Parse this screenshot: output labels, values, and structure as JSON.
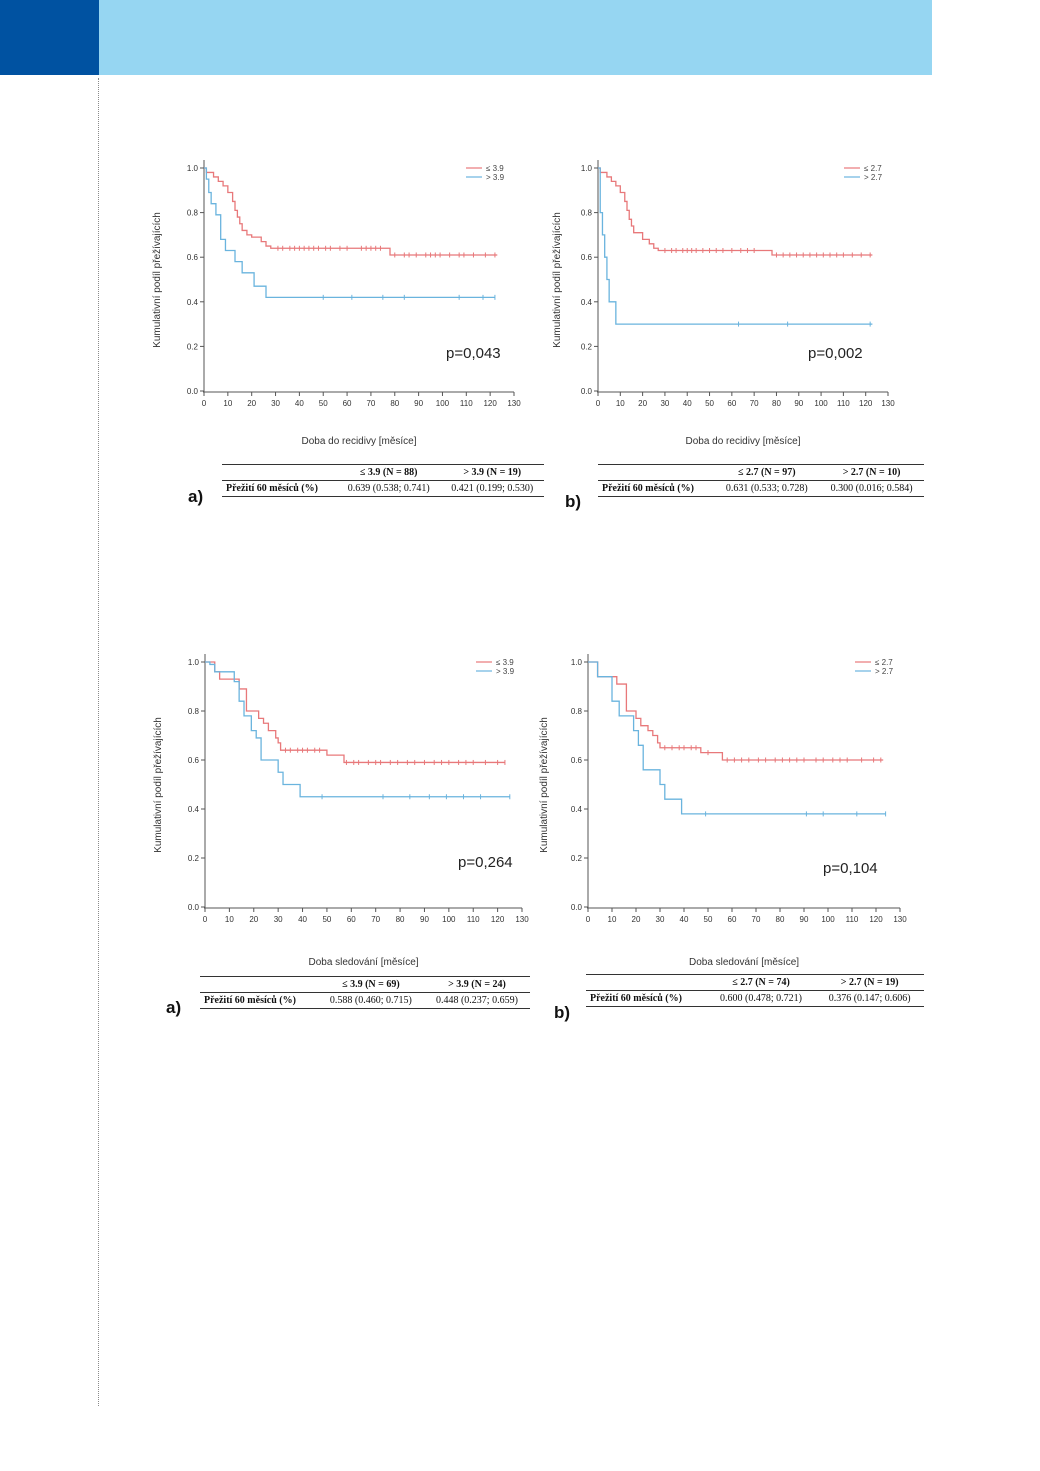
{
  "colors": {
    "header_dark": "#0052a1",
    "header_light": "#96d6f2",
    "series_low": "#e8787a",
    "series_high": "#6ab4de"
  },
  "charts": [
    {
      "id": "top-left",
      "panel_letter": "a)",
      "pvalue": "p=0,043",
      "chart_data": {
        "type": "line",
        "ylabel": "Kumulativní podíl přežívajících",
        "xlabel": "Doba do recidivy [měsíce]",
        "xlim": [
          0,
          130
        ],
        "ylim": [
          0,
          1
        ],
        "xticks": [
          "0",
          "10",
          "20",
          "30",
          "40",
          "50",
          "60",
          "70",
          "80",
          "90",
          "100",
          "110",
          "120",
          "130"
        ],
        "yticks": [
          "0.0",
          "0.2",
          "0.4",
          "0.6",
          "0.8",
          "1.0"
        ],
        "legend_position": "top-right",
        "series": [
          {
            "name": "≤ 3.9",
            "color": "#e8787a",
            "step": [
              [
                0,
                1
              ],
              [
                1,
                0.98
              ],
              [
                4,
                0.96
              ],
              [
                6,
                0.94
              ],
              [
                8,
                0.92
              ],
              [
                10,
                0.89
              ],
              [
                12,
                0.85
              ],
              [
                13,
                0.81
              ],
              [
                14,
                0.78
              ],
              [
                15,
                0.75
              ],
              [
                16,
                0.72
              ],
              [
                18,
                0.7
              ],
              [
                20,
                0.69
              ],
              [
                24,
                0.67
              ],
              [
                26,
                0.65
              ],
              [
                28,
                0.64
              ],
              [
                77,
                0.64
              ],
              [
                78,
                0.61
              ],
              [
                123,
                0.61
              ]
            ],
            "censored": [
              31,
              33,
              36,
              38,
              40,
              42,
              44,
              46,
              48,
              51,
              53,
              57,
              60,
              66,
              68,
              70,
              72,
              74,
              80,
              84,
              86,
              89,
              93,
              95,
              97,
              99,
              103,
              107,
              109,
              113,
              118,
              122
            ]
          },
          {
            "name": "> 3.9",
            "color": "#6ab4de",
            "step": [
              [
                0,
                1
              ],
              [
                1,
                0.95
              ],
              [
                2,
                0.89
              ],
              [
                3,
                0.84
              ],
              [
                5,
                0.79
              ],
              [
                7,
                0.68
              ],
              [
                9,
                0.63
              ],
              [
                13,
                0.58
              ],
              [
                16,
                0.53
              ],
              [
                20,
                0.53
              ],
              [
                21,
                0.47
              ],
              [
                25,
                0.47
              ],
              [
                26,
                0.42
              ],
              [
                122,
                0.42
              ]
            ],
            "censored": [
              50,
              62,
              75,
              84,
              107,
              117,
              122
            ]
          }
        ]
      },
      "table": {
        "col1": "≤ 3.9 (N = 88)",
        "col2": "> 3.9 (N = 19)",
        "row_label": "Přežití 60 měsíců (%)",
        "val1": "0.639 (0.538; 0.741)",
        "val2": "0.421 (0.199; 0.530)"
      }
    },
    {
      "id": "top-right",
      "panel_letter": "b)",
      "pvalue": "p=0,002",
      "chart_data": {
        "type": "line",
        "ylabel": "Kumulativní podíl přežívajících",
        "xlabel": "Doba do recidivy [měsíce]",
        "xlim": [
          0,
          130
        ],
        "ylim": [
          0,
          1
        ],
        "xticks": [
          "0",
          "10",
          "20",
          "30",
          "40",
          "50",
          "60",
          "70",
          "80",
          "90",
          "100",
          "110",
          "120",
          "130"
        ],
        "yticks": [
          "0.0",
          "0.2",
          "0.4",
          "0.6",
          "0.8",
          "1.0"
        ],
        "legend_position": "top-right",
        "series": [
          {
            "name": "≤ 2.7",
            "color": "#e8787a",
            "step": [
              [
                0,
                1
              ],
              [
                1,
                0.98
              ],
              [
                4,
                0.96
              ],
              [
                6,
                0.94
              ],
              [
                8,
                0.92
              ],
              [
                10,
                0.89
              ],
              [
                12,
                0.85
              ],
              [
                13,
                0.81
              ],
              [
                14,
                0.77
              ],
              [
                15,
                0.74
              ],
              [
                16,
                0.71
              ],
              [
                20,
                0.68
              ],
              [
                23,
                0.66
              ],
              [
                25,
                0.64
              ],
              [
                27,
                0.63
              ],
              [
                77,
                0.63
              ],
              [
                78,
                0.61
              ],
              [
                123,
                0.61
              ]
            ],
            "censored": [
              30,
              33,
              35,
              38,
              40,
              42,
              44,
              47,
              50,
              53,
              56,
              60,
              64,
              67,
              70,
              80,
              83,
              86,
              89,
              92,
              95,
              98,
              101,
              104,
              107,
              110,
              114,
              118,
              122
            ]
          },
          {
            "name": "> 2.7",
            "color": "#6ab4de",
            "step": [
              [
                0,
                1
              ],
              [
                1,
                0.8
              ],
              [
                2,
                0.7
              ],
              [
                3,
                0.6
              ],
              [
                4,
                0.5
              ],
              [
                5,
                0.4
              ],
              [
                8,
                0.3
              ],
              [
                123,
                0.3
              ]
            ],
            "censored": [
              63,
              85,
              122
            ]
          }
        ]
      },
      "table": {
        "col1": "≤ 2.7 (N = 97)",
        "col2": "> 2.7 (N = 10)",
        "row_label": "Přežití 60 měsíců (%)",
        "val1": "0.631 (0.533; 0.728)",
        "val2": "0.300 (0.016; 0.584)"
      }
    },
    {
      "id": "bottom-left",
      "panel_letter": "a)",
      "pvalue": "p=0,264",
      "chart_data": {
        "type": "line",
        "ylabel": "Kumulativní podíl přežívajících",
        "xlabel": "Doba sledování [měsíce]",
        "xlim": [
          0,
          130
        ],
        "ylim": [
          0,
          1
        ],
        "xticks": [
          "0",
          "10",
          "20",
          "30",
          "40",
          "50",
          "60",
          "70",
          "80",
          "90",
          "100",
          "110",
          "120",
          "130"
        ],
        "yticks": [
          "0.0",
          "0.2",
          "0.4",
          "0.6",
          "0.8",
          "1.0"
        ],
        "legend_position": "top-right",
        "series": [
          {
            "name": "≤ 3.9",
            "color": "#e8787a",
            "step": [
              [
                0,
                1
              ],
              [
                4,
                0.96
              ],
              [
                6,
                0.93
              ],
              [
                10,
                0.93
              ],
              [
                14,
                0.89
              ],
              [
                17,
                0.8
              ],
              [
                20,
                0.8
              ],
              [
                22,
                0.77
              ],
              [
                24,
                0.75
              ],
              [
                26,
                0.72
              ],
              [
                29,
                0.69
              ],
              [
                30,
                0.67
              ],
              [
                31,
                0.64
              ],
              [
                48,
                0.64
              ],
              [
                50,
                0.62
              ],
              [
                55,
                0.62
              ],
              [
                57,
                0.59
              ],
              [
                123,
                0.59
              ]
            ],
            "censored": [
              33,
              35,
              38,
              40,
              42,
              45,
              47,
              58,
              61,
              63,
              67,
              70,
              72,
              76,
              79,
              83,
              86,
              90,
              94,
              97,
              100,
              104,
              107,
              110,
              115,
              120,
              123
            ]
          },
          {
            "name": "> 3.9",
            "color": "#6ab4de",
            "step": [
              [
                0,
                1
              ],
              [
                2,
                0.99
              ],
              [
                4,
                0.96
              ],
              [
                10,
                0.96
              ],
              [
                12,
                0.92
              ],
              [
                14,
                0.84
              ],
              [
                16,
                0.78
              ],
              [
                19,
                0.72
              ],
              [
                21,
                0.69
              ],
              [
                23,
                0.6
              ],
              [
                30,
                0.55
              ],
              [
                32,
                0.5
              ],
              [
                38,
                0.5
              ],
              [
                39,
                0.45
              ],
              [
                125,
                0.45
              ]
            ],
            "censored": [
              48,
              73,
              84,
              92,
              99,
              106,
              113,
              125
            ]
          }
        ]
      },
      "table": {
        "col1": "≤ 3.9 (N = 69)",
        "col2": "> 3.9 (N = 24)",
        "row_label": "Přežití 60 měsíců (%)",
        "val1": "0.588 (0.460; 0.715)",
        "val2": "0.448 (0.237; 0.659)"
      }
    },
    {
      "id": "bottom-right",
      "panel_letter": "b)",
      "pvalue": "p=0,104",
      "chart_data": {
        "type": "line",
        "ylabel": "Kumulativní podíl přežívajících",
        "xlabel": "Doba sledování [měsíce]",
        "xlim": [
          0,
          130
        ],
        "ylim": [
          0,
          1
        ],
        "xticks": [
          "0",
          "10",
          "20",
          "30",
          "40",
          "50",
          "60",
          "70",
          "80",
          "90",
          "100",
          "110",
          "120",
          "130"
        ],
        "yticks": [
          "0.0",
          "0.2",
          "0.4",
          "0.6",
          "0.8",
          "1.0"
        ],
        "legend_position": "top-right",
        "series": [
          {
            "name": "≤ 2.7",
            "color": "#e8787a",
            "step": [
              [
                0,
                1
              ],
              [
                4,
                0.94
              ],
              [
                10,
                0.94
              ],
              [
                12,
                0.91
              ],
              [
                16,
                0.8
              ],
              [
                20,
                0.77
              ],
              [
                22,
                0.74
              ],
              [
                25,
                0.72
              ],
              [
                27,
                0.7
              ],
              [
                29,
                0.67
              ],
              [
                30,
                0.65
              ],
              [
                46,
                0.65
              ],
              [
                47,
                0.63
              ],
              [
                54,
                0.63
              ],
              [
                56,
                0.6
              ],
              [
                123,
                0.6
              ]
            ],
            "censored": [
              32,
              35,
              38,
              40,
              43,
              45,
              50,
              58,
              61,
              64,
              67,
              71,
              74,
              78,
              81,
              84,
              87,
              90,
              95,
              98,
              102,
              105,
              108,
              114,
              119,
              122
            ]
          },
          {
            "name": "> 2.7",
            "color": "#6ab4de",
            "step": [
              [
                0,
                1
              ],
              [
                4,
                0.94
              ],
              [
                10,
                0.84
              ],
              [
                13,
                0.78
              ],
              [
                19,
                0.72
              ],
              [
                21,
                0.66
              ],
              [
                23,
                0.56
              ],
              [
                30,
                0.5
              ],
              [
                32,
                0.44
              ],
              [
                39,
                0.38
              ],
              [
                124,
                0.38
              ]
            ],
            "censored": [
              49,
              91,
              98,
              112,
              124
            ]
          }
        ]
      },
      "table": {
        "col1": "≤ 2.7 (N = 74)",
        "col2": "> 2.7 (N = 19)",
        "row_label": "Přežití 60 měsíců (%)",
        "val1": "0.600 (0.478; 0.721)",
        "val2": "0.376 (0.147; 0.606)"
      }
    }
  ]
}
